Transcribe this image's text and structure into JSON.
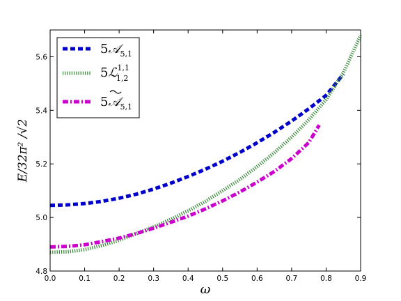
{
  "chart_data": {
    "type": "line",
    "title": "",
    "xlabel": "ω",
    "ylabel": "E/32π² /√2",
    "xlim": [
      0.0,
      0.9
    ],
    "ylim": [
      4.8,
      5.7
    ],
    "x_ticks": [
      "0.0",
      "0.1",
      "0.2",
      "0.3",
      "0.4",
      "0.5",
      "0.6",
      "0.7",
      "0.8",
      "0.9"
    ],
    "y_ticks": [
      "4.8",
      "5.0",
      "5.2",
      "5.4",
      "5.6"
    ],
    "grid": false,
    "legend_position": "top-left",
    "series": [
      {
        "name": "5A₅,₁",
        "color": "#0000cc",
        "style": "dashed",
        "x": [
          0.0,
          0.05,
          0.1,
          0.15,
          0.2,
          0.25,
          0.3,
          0.35,
          0.4,
          0.45,
          0.5,
          0.55,
          0.6,
          0.65,
          0.7,
          0.75,
          0.8,
          0.85
        ],
        "y": [
          5.045,
          5.047,
          5.052,
          5.06,
          5.072,
          5.087,
          5.106,
          5.128,
          5.153,
          5.18,
          5.21,
          5.243,
          5.279,
          5.318,
          5.36,
          5.406,
          5.456,
          5.535
        ]
      },
      {
        "name": "5L¹,¹₁,₂",
        "color": "#338833",
        "style": "dotted",
        "x": [
          0.0,
          0.05,
          0.1,
          0.15,
          0.2,
          0.25,
          0.3,
          0.35,
          0.4,
          0.45,
          0.5,
          0.55,
          0.6,
          0.65,
          0.7,
          0.75,
          0.8,
          0.85,
          0.9
        ],
        "y": [
          4.87,
          4.872,
          4.88,
          4.895,
          4.915,
          4.94,
          4.965,
          4.993,
          5.025,
          5.06,
          5.1,
          5.142,
          5.19,
          5.242,
          5.3,
          5.365,
          5.44,
          5.54,
          5.68
        ]
      },
      {
        "name": "5Ã₅,₁",
        "color": "#cc00cc",
        "style": "dashdot",
        "x": [
          0.0,
          0.05,
          0.1,
          0.15,
          0.2,
          0.25,
          0.3,
          0.35,
          0.4,
          0.45,
          0.5,
          0.55,
          0.6,
          0.65,
          0.7,
          0.75,
          0.78
        ],
        "y": [
          4.89,
          4.892,
          4.898,
          4.91,
          4.923,
          4.94,
          4.96,
          4.982,
          5.005,
          5.032,
          5.062,
          5.095,
          5.132,
          5.172,
          5.22,
          5.28,
          5.345
        ]
      }
    ]
  }
}
